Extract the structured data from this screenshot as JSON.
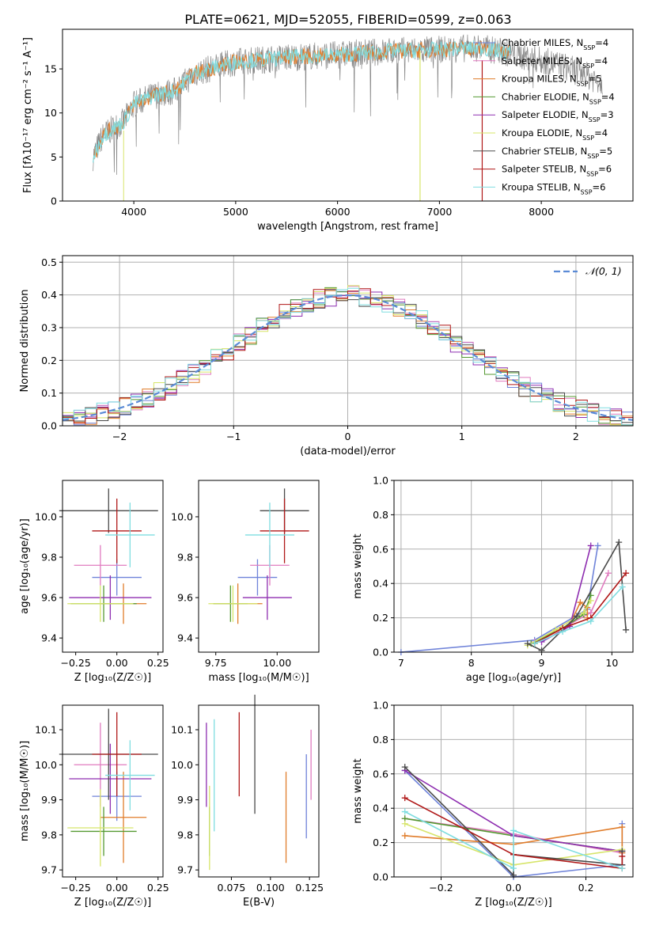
{
  "title": "PLATE=0621, MJD=52055, FIBERID=0599, z=0.063",
  "colors": {
    "Chabrier MILES": "#6f83d9",
    "Salpeter MILES": "#e07bbf",
    "Kroupa MILES": "#e07c2a",
    "Chabrier ELODIE": "#559932",
    "Salpeter ELODIE": "#8e2eb0",
    "Kroupa ELODIE": "#d7e56a",
    "Chabrier STELIB": "#4a4a4a",
    "Salpeter STELIB": "#b01818",
    "Kroupa STELIB": "#7fdde0",
    "data": "#888888",
    "grid": "#b0b0b0"
  },
  "chart_data": [
    {
      "id": "spectrum",
      "type": "line",
      "xlabel": "wavelength [Angstrom, rest frame]",
      "ylabel": "Flux [fλ10⁻¹⁷ erg cm⁻² s⁻¹ A⁻¹]",
      "xlim": [
        3300,
        8900
      ],
      "ylim": [
        0,
        19.5
      ],
      "xticks": [
        "4000",
        "5000",
        "6000",
        "7000",
        "8000"
      ],
      "yticks": [
        "0",
        "5",
        "10",
        "15"
      ],
      "legend_position": "right",
      "legend": [
        {
          "label": "Chabrier MILES, N",
          "sub": "SSP",
          "suffix": "=4"
        },
        {
          "label": "Salpeter MILES, N",
          "sub": "SSP",
          "suffix": "=4"
        },
        {
          "label": "Kroupa MILES, N",
          "sub": "SSP",
          "suffix": "=5"
        },
        {
          "label": "Chabrier ELODIE, N",
          "sub": "SSP",
          "suffix": "=4"
        },
        {
          "label": "Salpeter ELODIE, N",
          "sub": "SSP",
          "suffix": "=3"
        },
        {
          "label": "Kroupa ELODIE, N",
          "sub": "SSP",
          "suffix": "=4"
        },
        {
          "label": "Chabrier STELIB, N",
          "sub": "SSP",
          "suffix": "=5"
        },
        {
          "label": "Salpeter STELIB, N",
          "sub": "SSP",
          "suffix": "=6"
        },
        {
          "label": "Kroupa STELIB, N",
          "sub": "SSP",
          "suffix": "=6"
        }
      ],
      "continuum": [
        [
          3600,
          5
        ],
        [
          3700,
          7.5
        ],
        [
          3900,
          9
        ],
        [
          4000,
          11
        ],
        [
          4200,
          12
        ],
        [
          4400,
          12.5
        ],
        [
          4600,
          14.5
        ],
        [
          4800,
          15.2
        ],
        [
          5000,
          15.8
        ],
        [
          5200,
          16
        ],
        [
          5500,
          16.3
        ],
        [
          6000,
          16.6
        ],
        [
          6500,
          17
        ],
        [
          7000,
          17.2
        ],
        [
          7400,
          17.4
        ],
        [
          7600,
          17
        ],
        [
          7800,
          16.5
        ],
        [
          8200,
          15.4
        ],
        [
          8600,
          13.5
        ]
      ]
    },
    {
      "id": "residuals",
      "type": "histogram",
      "xlabel": "(data-model)/error",
      "ylabel": "Normed distribution",
      "xlim": [
        -2.5,
        2.5
      ],
      "ylim": [
        0,
        0.52
      ],
      "xticks": [
        "−2",
        "−1",
        "0",
        "1",
        "2"
      ],
      "yticks": [
        "0.0",
        "0.1",
        "0.2",
        "0.3",
        "0.4",
        "0.5"
      ],
      "legend": "𝒩(0, 1)",
      "legend_position": "top-right",
      "gaussian_sigma": 1
    },
    {
      "id": "age_vs_Z",
      "type": "scatter",
      "xlabel": "Z [log₁₀(Z/Z☉)]",
      "ylabel": "age  [log₁₀(age/yr)]",
      "xlim": [
        -0.33,
        0.28
      ],
      "ylim": [
        9.33,
        10.18
      ],
      "xticks": [
        "−0.25",
        "0.00",
        "0.25"
      ],
      "yticks": [
        "9.4",
        "9.6",
        "9.8",
        "10.0"
      ],
      "points": [
        {
          "m": "Chabrier MILES",
          "x": 0.0,
          "y": 9.7,
          "xe": 0.15,
          "ye": 0.09
        },
        {
          "m": "Salpeter MILES",
          "x": -0.1,
          "y": 9.76,
          "xe": 0.16,
          "ye": 0.1
        },
        {
          "m": "Kroupa MILES",
          "x": 0.04,
          "y": 9.57,
          "xe": 0.14,
          "ye": 0.1
        },
        {
          "m": "Chabrier ELODIE",
          "x": -0.08,
          "y": 9.57,
          "xe": 0.2,
          "ye": 0.09
        },
        {
          "m": "Salpeter ELODIE",
          "x": -0.04,
          "y": 9.6,
          "xe": 0.25,
          "ye": 0.11
        },
        {
          "m": "Kroupa ELODIE",
          "x": -0.1,
          "y": 9.57,
          "xe": 0.2,
          "ye": 0.09
        },
        {
          "m": "Chabrier STELIB",
          "x": -0.05,
          "y": 10.03,
          "xe": 0.3,
          "ye": 0.11
        },
        {
          "m": "Salpeter STELIB",
          "x": 0.0,
          "y": 9.93,
          "xe": 0.15,
          "ye": 0.16
        },
        {
          "m": "Kroupa STELIB",
          "x": 0.08,
          "y": 9.91,
          "xe": 0.15,
          "ye": 0.16
        }
      ]
    },
    {
      "id": "age_vs_mass",
      "type": "scatter",
      "xlabel": "mass [log₁₀(M/M☉)]",
      "ylabel": "",
      "xlim": [
        9.68,
        10.17
      ],
      "ylim": [
        9.33,
        10.18
      ],
      "xticks": [
        "9.75",
        "10.00"
      ],
      "yticks": [
        "9.4",
        "9.6",
        "9.8",
        "10.0"
      ],
      "points": [
        {
          "m": "Chabrier MILES",
          "x": 9.92,
          "y": 9.7,
          "xe": 0.08,
          "ye": 0.09
        },
        {
          "m": "Salpeter MILES",
          "x": 9.97,
          "y": 9.76,
          "xe": 0.08,
          "ye": 0.1
        },
        {
          "m": "Kroupa MILES",
          "x": 9.84,
          "y": 9.57,
          "xe": 0.1,
          "ye": 0.1
        },
        {
          "m": "Chabrier ELODIE",
          "x": 9.81,
          "y": 9.57,
          "xe": 0.07,
          "ye": 0.09
        },
        {
          "m": "Salpeter ELODIE",
          "x": 9.96,
          "y": 9.6,
          "xe": 0.1,
          "ye": 0.11
        },
        {
          "m": "Kroupa ELODIE",
          "x": 9.82,
          "y": 9.57,
          "xe": 0.1,
          "ye": 0.09
        },
        {
          "m": "Chabrier STELIB",
          "x": 10.03,
          "y": 10.03,
          "xe": 0.1,
          "ye": 0.11
        },
        {
          "m": "Salpeter STELIB",
          "x": 10.03,
          "y": 9.93,
          "xe": 0.1,
          "ye": 0.16
        },
        {
          "m": "Kroupa STELIB",
          "x": 9.97,
          "y": 9.91,
          "xe": 0.1,
          "ye": 0.16
        }
      ]
    },
    {
      "id": "weight_vs_age",
      "type": "line",
      "xlabel": "age  [log₁₀(age/yr)]",
      "ylabel": "mass weight",
      "xlim": [
        6.9,
        10.3
      ],
      "ylim": [
        0,
        1
      ],
      "xticks": [
        "7",
        "8",
        "9",
        "10"
      ],
      "yticks": [
        "0.0",
        "0.2",
        "0.4",
        "0.6",
        "0.8",
        "1.0"
      ],
      "series": [
        {
          "m": "Chabrier MILES",
          "pts": [
            [
              7.0,
              0.0
            ],
            [
              8.9,
              0.07
            ],
            [
              9.65,
              0.25
            ],
            [
              9.8,
              0.62
            ]
          ]
        },
        {
          "m": "Salpeter MILES",
          "pts": [
            [
              8.9,
              0.06
            ],
            [
              9.3,
              0.14
            ],
            [
              9.7,
              0.23
            ],
            [
              9.95,
              0.46
            ]
          ]
        },
        {
          "m": "Kroupa MILES",
          "pts": [
            [
              8.9,
              0.05
            ],
            [
              9.4,
              0.16
            ],
            [
              9.55,
              0.29
            ],
            [
              9.65,
              0.26
            ],
            [
              9.65,
              0.2
            ]
          ]
        },
        {
          "m": "Chabrier ELODIE",
          "pts": [
            [
              8.85,
              0.05
            ],
            [
              9.3,
              0.14
            ],
            [
              9.6,
              0.22
            ],
            [
              9.7,
              0.33
            ]
          ]
        },
        {
          "m": "Salpeter ELODIE",
          "pts": [
            [
              9.0,
              0.06
            ],
            [
              9.4,
              0.15
            ],
            [
              9.7,
              0.62
            ]
          ]
        },
        {
          "m": "Kroupa ELODIE",
          "pts": [
            [
              8.8,
              0.04
            ],
            [
              9.2,
              0.13
            ],
            [
              9.6,
              0.23
            ],
            [
              9.7,
              0.3
            ]
          ]
        },
        {
          "m": "Chabrier STELIB",
          "pts": [
            [
              8.8,
              0.05
            ],
            [
              9.0,
              0.01
            ],
            [
              9.5,
              0.21
            ],
            [
              10.1,
              0.64
            ],
            [
              10.2,
              0.13
            ]
          ]
        },
        {
          "m": "Salpeter STELIB",
          "pts": [
            [
              8.9,
              0.05
            ],
            [
              9.3,
              0.14
            ],
            [
              9.7,
              0.2
            ],
            [
              10.2,
              0.46
            ]
          ]
        },
        {
          "m": "Kroupa STELIB",
          "pts": [
            [
              8.9,
              0.05
            ],
            [
              9.3,
              0.12
            ],
            [
              9.7,
              0.18
            ],
            [
              10.15,
              0.38
            ]
          ]
        }
      ]
    },
    {
      "id": "mass_vs_Z",
      "type": "scatter",
      "xlabel": "Z [log₁₀(Z/Z☉)]",
      "ylabel": "mass [log₁₀(M/M☉)]",
      "xlim": [
        -0.33,
        0.28
      ],
      "ylim": [
        9.68,
        10.17
      ],
      "xticks": [
        "−0.25",
        "0.00",
        "0.25"
      ],
      "yticks": [
        "9.7",
        "9.8",
        "9.9",
        "10.0",
        "10.1"
      ],
      "points": [
        {
          "m": "Chabrier MILES",
          "x": 0.0,
          "y": 9.91,
          "xe": 0.15,
          "ye": 0.07
        },
        {
          "m": "Salpeter MILES",
          "x": -0.1,
          "y": 10.0,
          "xe": 0.16,
          "ye": 0.12
        },
        {
          "m": "Kroupa MILES",
          "x": 0.04,
          "y": 9.85,
          "xe": 0.14,
          "ye": 0.13
        },
        {
          "m": "Chabrier ELODIE",
          "x": -0.08,
          "y": 9.81,
          "xe": 0.2,
          "ye": 0.07
        },
        {
          "m": "Salpeter ELODIE",
          "x": -0.04,
          "y": 9.96,
          "xe": 0.25,
          "ye": 0.1
        },
        {
          "m": "Kroupa ELODIE",
          "x": -0.1,
          "y": 9.82,
          "xe": 0.2,
          "ye": 0.11
        },
        {
          "m": "Chabrier STELIB",
          "x": -0.05,
          "y": 10.03,
          "xe": 0.3,
          "ye": 0.13
        },
        {
          "m": "Salpeter STELIB",
          "x": 0.0,
          "y": 10.03,
          "xe": 0.15,
          "ye": 0.12
        },
        {
          "m": "Kroupa STELIB",
          "x": 0.08,
          "y": 9.97,
          "xe": 0.15,
          "ye": 0.1
        }
      ]
    },
    {
      "id": "mass_vs_ebv",
      "type": "scatter",
      "xlabel": "E(B-V)",
      "ylabel": "",
      "xlim": [
        0.054,
        0.131
      ],
      "ylim": [
        9.68,
        10.17
      ],
      "xticks": [
        "0.075",
        "0.100",
        "0.125"
      ],
      "yticks": [
        "9.7",
        "9.8",
        "9.9",
        "10.0",
        "10.1"
      ],
      "points": [
        {
          "m": "Chabrier MILES",
          "x": 0.123,
          "y": 9.91,
          "xe": 0,
          "ye": 0.12
        },
        {
          "m": "Salpeter MILES",
          "x": 0.126,
          "y": 10.0,
          "xe": 0,
          "ye": 0.1
        },
        {
          "m": "Kroupa MILES",
          "x": 0.11,
          "y": 9.85,
          "xe": 0,
          "ye": 0.13
        },
        {
          "m": "Chabrier ELODIE",
          "x": 0.061,
          "y": 9.81,
          "xe": 0,
          "ye": 0.07
        },
        {
          "m": "Salpeter ELODIE",
          "x": 0.059,
          "y": 10.0,
          "xe": 0,
          "ye": 0.12
        },
        {
          "m": "Kroupa ELODIE",
          "x": 0.061,
          "y": 9.82,
          "xe": 0,
          "ye": 0.12
        },
        {
          "m": "Chabrier STELIB",
          "x": 0.09,
          "y": 10.03,
          "xe": 0,
          "ye": 0.17
        },
        {
          "m": "Salpeter STELIB",
          "x": 0.08,
          "y": 10.03,
          "xe": 0,
          "ye": 0.12
        },
        {
          "m": "Kroupa STELIB",
          "x": 0.064,
          "y": 9.97,
          "xe": 0,
          "ye": 0.16
        }
      ]
    },
    {
      "id": "weight_vs_Z",
      "type": "line",
      "xlabel": "Z [log₁₀(Z/Z☉)]",
      "ylabel": "mass weight",
      "xlim": [
        -0.33,
        0.33
      ],
      "ylim": [
        0,
        1
      ],
      "xticks": [
        "−0.2",
        "0.0",
        "0.2"
      ],
      "yticks": [
        "0.0",
        "0.2",
        "0.4",
        "0.6",
        "0.8",
        "1.0"
      ],
      "series": [
        {
          "m": "Chabrier MILES",
          "pts": [
            [
              -0.3,
              0.62
            ],
            [
              0.0,
              0.0
            ],
            [
              0.3,
              0.07
            ],
            [
              0.3,
              0.31
            ]
          ]
        },
        {
          "m": "Salpeter MILES",
          "pts": [
            [
              -0.3,
              0.34
            ],
            [
              0.0,
              0.25
            ],
            [
              0.3,
              0.14
            ]
          ]
        },
        {
          "m": "Kroupa MILES",
          "pts": [
            [
              -0.3,
              0.24
            ],
            [
              0.0,
              0.19
            ],
            [
              0.3,
              0.29
            ],
            [
              0.3,
              0.14
            ]
          ]
        },
        {
          "m": "Chabrier ELODIE",
          "pts": [
            [
              -0.3,
              0.34
            ],
            [
              0.0,
              0.24
            ],
            [
              0.3,
              0.15
            ]
          ]
        },
        {
          "m": "Salpeter ELODIE",
          "pts": [
            [
              -0.3,
              0.62
            ],
            [
              0.0,
              0.24
            ],
            [
              0.3,
              0.15
            ]
          ]
        },
        {
          "m": "Kroupa ELODIE",
          "pts": [
            [
              -0.3,
              0.31
            ],
            [
              0.0,
              0.07
            ],
            [
              0.3,
              0.16
            ]
          ]
        },
        {
          "m": "Chabrier STELIB",
          "pts": [
            [
              -0.3,
              0.64
            ],
            [
              0.0,
              0.01
            ],
            [
              0.0,
              0.13
            ],
            [
              0.3,
              0.07
            ],
            [
              0.3,
              0.15
            ]
          ]
        },
        {
          "m": "Salpeter STELIB",
          "pts": [
            [
              -0.3,
              0.46
            ],
            [
              0.0,
              0.13
            ],
            [
              0.3,
              0.05
            ],
            [
              0.3,
              0.12
            ]
          ]
        },
        {
          "m": "Kroupa STELIB",
          "pts": [
            [
              -0.3,
              0.38
            ],
            [
              0.0,
              0.05
            ],
            [
              0.0,
              0.27
            ],
            [
              0.3,
              0.05
            ]
          ]
        }
      ]
    }
  ]
}
